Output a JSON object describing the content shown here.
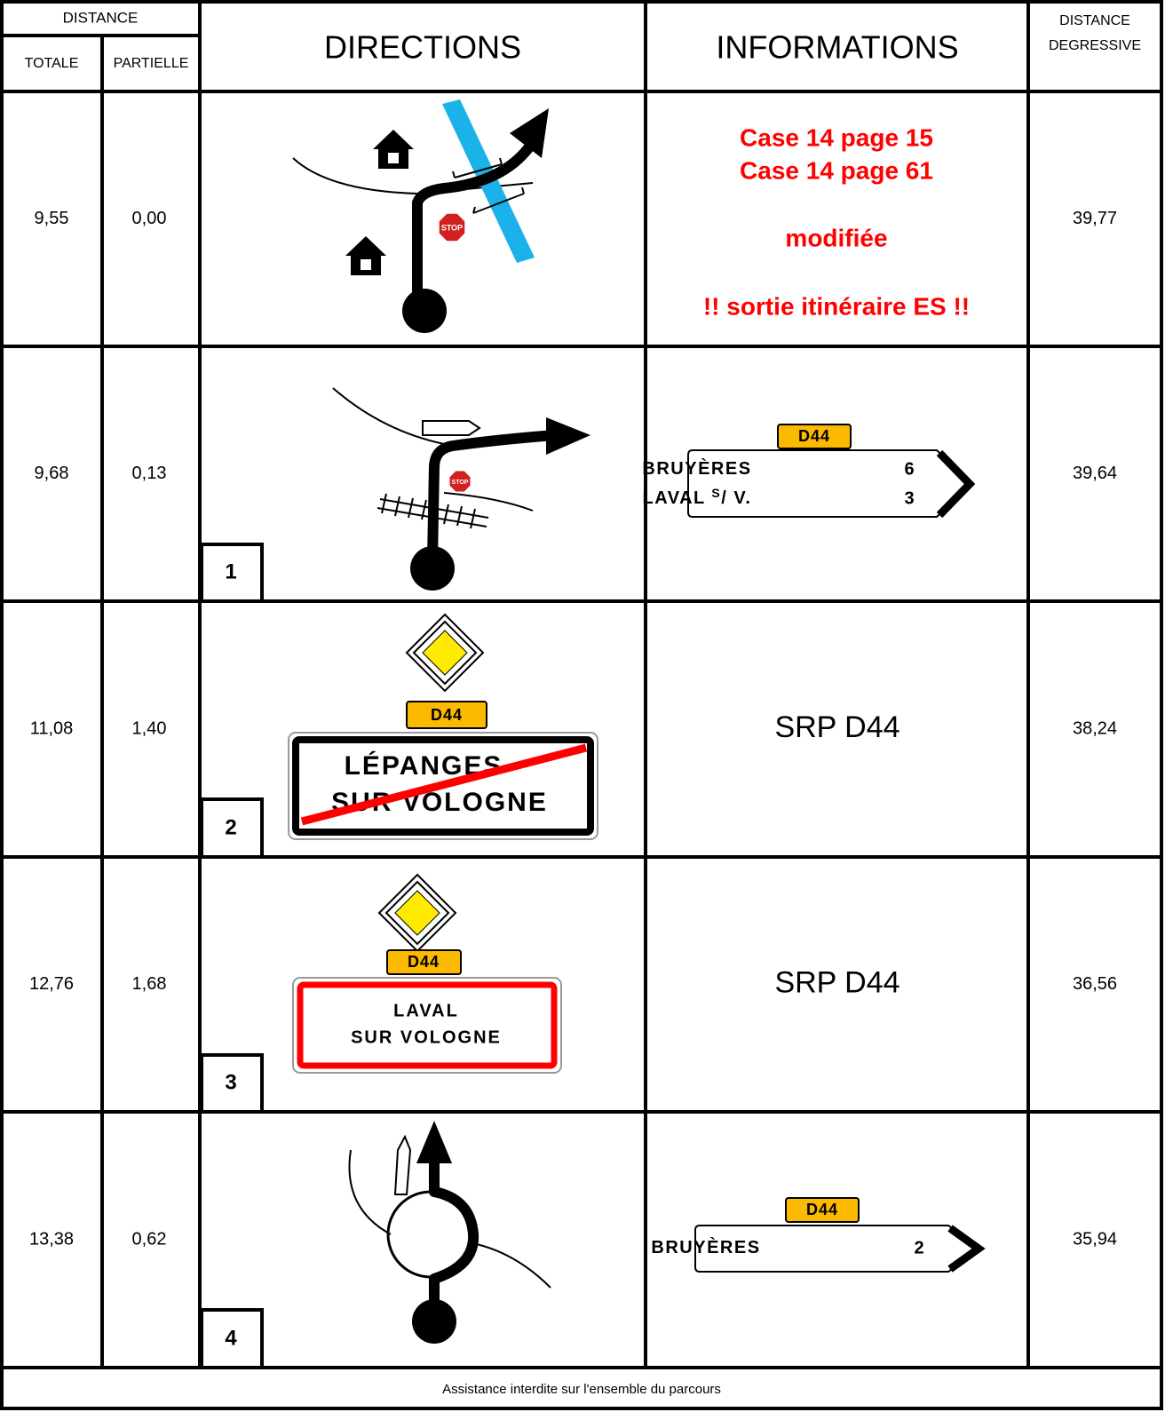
{
  "header": {
    "distance": "DISTANCE",
    "totale": "TOTALE",
    "partielle": "PARTIELLE",
    "directions": "DIRECTIONS",
    "informations": "INFORMATIONS",
    "degressive": [
      "DISTANCE",
      "DEGRESSIVE"
    ]
  },
  "rows": [
    {
      "totale": "9,55",
      "partielle": "0,00",
      "degressive": "39,77",
      "stop": "STOP",
      "info": [
        "Case 14 page 15",
        "Case 14 page 61",
        "modifiée",
        "!! sortie itinéraire ES !!"
      ]
    },
    {
      "totale": "9,68",
      "partielle": "0,13",
      "degressive": "39,64",
      "case": "1",
      "stop": "STOP",
      "sign": {
        "road": "D44",
        "lines": [
          {
            "name": "BRUYÈRES",
            "km": "6"
          },
          {
            "name": "LAVAL ",
            "sup": "S",
            "suffix": "/ V.",
            "km": "3"
          }
        ]
      }
    },
    {
      "totale": "11,08",
      "partielle": "1,40",
      "degressive": "38,24",
      "case": "2",
      "road": "D44",
      "town": [
        "LÉPANGES",
        "SUR VOLOGNE"
      ],
      "info": "SRP D44"
    },
    {
      "totale": "12,76",
      "partielle": "1,68",
      "degressive": "36,56",
      "case": "3",
      "road": "D44",
      "town": [
        "LAVAL",
        "SUR VOLOGNE"
      ],
      "info": "SRP D44"
    },
    {
      "totale": "13,38",
      "partielle": "0,62",
      "degressive": "35,94",
      "case": "4",
      "sign": {
        "road": "D44",
        "lines": [
          {
            "name": "BRUYÈRES",
            "km": "2"
          }
        ]
      }
    }
  ],
  "footer": "Assistance interdite sur l'ensemble du parcours"
}
